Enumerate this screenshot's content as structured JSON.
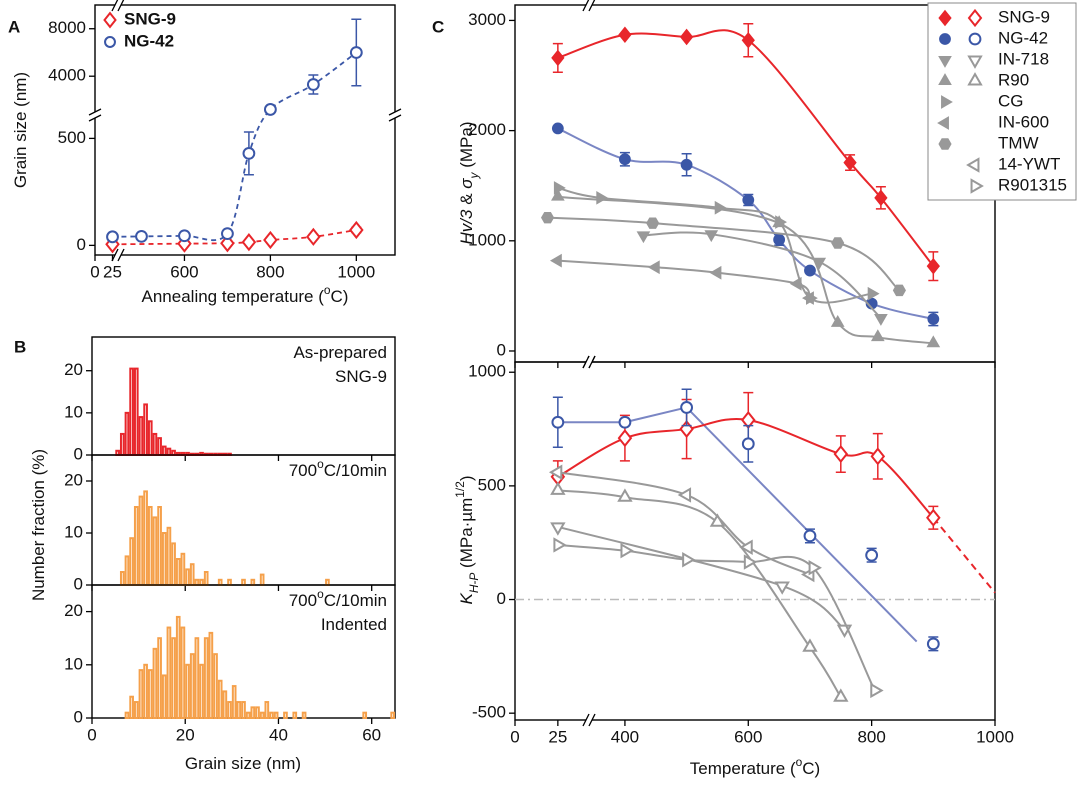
{
  "chart_data": [
    {
      "type": "line",
      "panel_label": "A",
      "x_segments": [
        [
          0,
          30
        ],
        [
          450,
          1090
        ]
      ],
      "y_segments": [
        [
          -45,
          600
        ],
        [
          900,
          10000
        ]
      ],
      "xticks": [
        0,
        25,
        600,
        800,
        1000
      ],
      "yticks": [
        0,
        500,
        4000,
        8000
      ],
      "xlabel": [
        {
          "text": "Annealing temperature ("
        },
        {
          "text": "o",
          "sup": true
        },
        {
          "text": "C)"
        }
      ],
      "ylabel": [
        {
          "text": "Grain size (nm)"
        }
      ],
      "legend": "upper left",
      "series": [
        {
          "name": "SNG-9",
          "color": "#e8262b",
          "marker": "diamond",
          "filled": false,
          "line": "dash",
          "x": [
            25,
            600,
            700,
            750,
            800,
            900,
            1000
          ],
          "values": [
            5,
            8,
            10,
            15,
            25,
            40,
            72
          ],
          "errors": [
            null,
            null,
            null,
            null,
            8,
            10,
            12
          ]
        },
        {
          "name": "NG-42",
          "color": "#3b57a7",
          "marker": "circle",
          "filled": false,
          "line": "dash",
          "x": [
            25,
            500,
            600,
            700,
            750,
            800,
            900,
            1000
          ],
          "values": [
            40,
            42,
            45,
            55,
            430,
            1200,
            3300,
            6000
          ],
          "errors": [
            null,
            null,
            null,
            null,
            100,
            null,
            800,
            2800
          ]
        }
      ]
    },
    {
      "type": "histogram",
      "panel_label": "B",
      "color": "#e8262b",
      "xlim": [
        0,
        65
      ],
      "ylim": [
        0,
        28
      ],
      "xticks": [
        0,
        20,
        40,
        60
      ],
      "yticks": [
        0,
        10,
        20
      ],
      "bins": [
        5,
        6,
        7,
        8,
        9,
        10,
        11,
        12,
        13,
        14,
        15,
        16,
        17,
        18,
        19,
        20,
        21,
        22,
        23,
        24,
        25,
        26,
        27,
        28,
        29,
        30
      ],
      "counts": [
        1,
        5,
        10,
        20.5,
        20.5,
        9,
        12,
        8,
        5,
        4,
        2,
        1.5,
        1,
        0.5,
        0.5,
        0.5,
        0.3,
        0.3,
        0.5,
        0.3,
        0.3,
        0.3,
        0.3,
        0.3,
        0.3
      ],
      "annotation": [
        [
          {
            "text": "As-prepared"
          }
        ],
        [
          {
            "text": "SNG-9"
          }
        ]
      ]
    },
    {
      "type": "histogram",
      "color": "#f5a04a",
      "xlim": [
        0,
        65
      ],
      "ylim": [
        0,
        25
      ],
      "xticks": [
        0,
        20,
        40,
        60
      ],
      "yticks": [
        0,
        10,
        20
      ],
      "ylabel": [
        {
          "text": "Number fraction (%)"
        }
      ],
      "bins": [
        5,
        6,
        7,
        8,
        9,
        10,
        11,
        12,
        13,
        14,
        15,
        16,
        17,
        18,
        19,
        20,
        21,
        22,
        23,
        24,
        25,
        26,
        27,
        28,
        29,
        30,
        31,
        32,
        33,
        34,
        35,
        36,
        37,
        38,
        39,
        40,
        41,
        42,
        43,
        44,
        45,
        46,
        47,
        48,
        49,
        50,
        51,
        52
      ],
      "counts": [
        0,
        2.5,
        5.5,
        9,
        15,
        17,
        18,
        15,
        13,
        15,
        10,
        11,
        8,
        5,
        6,
        3,
        4,
        1,
        1,
        2.5,
        0,
        0,
        1,
        0,
        1,
        0,
        0,
        1,
        0,
        1,
        0,
        2,
        0,
        0,
        0,
        0,
        0,
        0,
        0,
        0,
        0,
        0,
        0,
        0,
        0,
        1,
        0
      ],
      "annotation": [
        [
          {
            "text": "700"
          },
          {
            "text": "o",
            "sup": true
          },
          {
            "text": "C/10min"
          }
        ]
      ]
    },
    {
      "type": "histogram",
      "color": "#f5a04a",
      "xlim": [
        0,
        65
      ],
      "ylim": [
        0,
        25
      ],
      "xticks": [
        0,
        20,
        40,
        60
      ],
      "yticks": [
        0,
        10,
        20
      ],
      "xlabel": [
        {
          "text": "Grain size (nm)"
        }
      ],
      "bins": [
        7,
        8,
        9,
        10,
        11,
        12,
        13,
        14,
        15,
        16,
        17,
        18,
        19,
        20,
        21,
        22,
        23,
        24,
        25,
        26,
        27,
        28,
        29,
        30,
        31,
        32,
        33,
        34,
        35,
        36,
        37,
        38,
        39,
        40,
        41,
        42,
        43,
        44,
        45,
        46,
        47,
        48,
        49,
        50,
        51,
        52,
        53,
        54,
        55,
        56,
        57,
        58,
        59,
        60,
        61,
        62,
        63,
        64,
        65
      ],
      "counts": [
        1,
        4,
        3,
        9,
        10,
        9,
        13,
        15,
        8,
        17,
        15,
        19,
        17,
        10,
        12,
        15,
        10,
        15,
        16,
        12,
        7,
        5,
        3,
        6,
        3,
        3,
        1,
        2,
        2,
        1,
        3,
        1,
        1,
        0,
        1,
        0,
        1,
        0,
        1,
        0,
        0,
        0,
        0,
        0,
        0,
        0,
        0,
        0,
        0,
        0,
        0,
        1,
        0,
        0,
        0,
        0,
        0,
        1
      ],
      "annotation": [
        [
          {
            "text": "700"
          },
          {
            "text": "o",
            "sup": true
          },
          {
            "text": "C/10min"
          }
        ],
        [
          {
            "text": "Indented"
          }
        ]
      ]
    },
    {
      "type": "scatter",
      "panel_label": "C",
      "x_segments": [
        [
          0,
          42
        ],
        [
          345,
          1000
        ]
      ],
      "ylim": [
        -100,
        3140
      ],
      "xticks": [
        0,
        25,
        400,
        600,
        800,
        1000
      ],
      "yticks": [
        0,
        1000,
        2000,
        3000
      ],
      "legend": "upper right",
      "ylabel": [
        {
          "text": "Hv/3",
          "italic": true
        },
        {
          "text": " & "
        },
        {
          "text": "σ",
          "italic": true
        },
        {
          "text": "y",
          "sub": true,
          "italic": true
        },
        {
          "text": " (MPa)"
        }
      ],
      "series": [
        {
          "name": "SNG-9",
          "color": "#e8262b",
          "marker": "diamond",
          "filled": true,
          "line": "solid",
          "x": [
            25,
            400,
            500,
            600,
            765,
            815,
            900
          ],
          "values": [
            2660,
            2870,
            2850,
            2820,
            1710,
            1390,
            770
          ],
          "errors": [
            130,
            null,
            null,
            150,
            70,
            100,
            130
          ]
        },
        {
          "name": "NG-42",
          "color": "#3b57a7",
          "line_color": "#7a86c4",
          "marker": "circle",
          "filled": true,
          "line": "solid",
          "x": [
            25,
            400,
            500,
            600,
            650,
            700,
            800,
            900
          ],
          "values": [
            2020,
            1740,
            1690,
            1370,
            1010,
            730,
            430,
            290
          ],
          "errors": [
            null,
            60,
            100,
            50,
            50,
            null,
            null,
            60
          ]
        },
        {
          "name": "IN-718",
          "color": "#999999",
          "marker": "tri-down",
          "filled": true,
          "line": "solid",
          "x": [
            430,
            540,
            715,
            815
          ],
          "values": [
            1050,
            1060,
            810,
            300
          ]
        },
        {
          "name": "R90",
          "color": "#999999",
          "marker": "tri-up",
          "filled": true,
          "line": "solid",
          "x": [
            25,
            650,
            745,
            810,
            900
          ],
          "values": [
            1400,
            1160,
            255,
            125,
            70
          ]
        },
        {
          "name": "CG",
          "color": "#999999",
          "marker": "tri-right",
          "filled": true,
          "line": "solid",
          "x": [
            25,
            360,
            552,
            650,
            700,
            800
          ],
          "values": [
            1480,
            1390,
            1300,
            1170,
            480,
            520
          ]
        },
        {
          "name": "IN-600",
          "color": "#999999",
          "marker": "tri-left",
          "filled": true,
          "line": "solid",
          "x": [
            25,
            450,
            550,
            680,
            700
          ],
          "values": [
            820,
            760,
            710,
            610,
            480
          ]
        },
        {
          "name": "TMW",
          "color": "#999999",
          "marker": "hexagon",
          "filled": true,
          "line": "solid",
          "x": [
            19,
            445,
            745,
            845
          ],
          "values": [
            1210,
            1160,
            980,
            550
          ]
        }
      ]
    },
    {
      "type": "scatter",
      "x_segments": [
        [
          0,
          42
        ],
        [
          345,
          1000
        ]
      ],
      "ylim": [
        -530,
        1045
      ],
      "xticks": [
        0,
        25,
        400,
        600,
        800,
        1000
      ],
      "yticks": [
        -500,
        0,
        500,
        1000
      ],
      "hline": 0,
      "xlabel": [
        {
          "text": "Temperature ("
        },
        {
          "text": "o",
          "sup": true
        },
        {
          "text": "C)"
        }
      ],
      "ylabel": [
        {
          "text": "K",
          "italic": true
        },
        {
          "text": "H-P",
          "sub": true,
          "italic": true
        },
        {
          "text": " (MPa·µm"
        },
        {
          "text": "1/2",
          "sup": true
        },
        {
          "text": ")"
        }
      ],
      "series": [
        {
          "name": "SNG-9",
          "color": "#e8262b",
          "marker": "diamond",
          "filled": false,
          "line": "solid",
          "x": [
            25,
            400,
            500,
            600,
            750,
            810,
            900
          ],
          "values": [
            540,
            710,
            750,
            790,
            640,
            630,
            360
          ],
          "errors": [
            70,
            100,
            130,
            120,
            80,
            100,
            50
          ]
        },
        {
          "name": "NG-42",
          "color": "#3b57a7",
          "marker": "circle",
          "filled": false,
          "x": [
            25,
            400,
            500,
            600,
            700,
            800,
            900
          ],
          "values": [
            780,
            780,
            845,
            685,
            280,
            195,
            -195
          ],
          "errors": [
            110,
            null,
            80,
            80,
            30,
            30,
            30
          ]
        },
        {
          "name": "IN-718",
          "color": "#999999",
          "marker": "tri-down",
          "filled": false,
          "line": "solid",
          "x": [
            25,
            655,
            756
          ],
          "values": [
            320,
            60,
            -130
          ]
        },
        {
          "name": "R90",
          "color": "#999999",
          "marker": "tri-up",
          "filled": false,
          "line": "solid",
          "x": [
            25,
            400,
            550,
            700,
            750
          ],
          "values": [
            480,
            450,
            340,
            -210,
            -430
          ]
        },
        {
          "name": "14-YWT",
          "color": "#999999",
          "marker": "tri-left",
          "filled": false,
          "line": "solid",
          "x": [
            25,
            500,
            600,
            700
          ],
          "values": [
            560,
            460,
            230,
            110
          ]
        },
        {
          "name": "R901315",
          "color": "#999999",
          "marker": "tri-right",
          "filled": false,
          "line": "solid",
          "x": [
            25,
            400,
            500,
            600,
            705,
            805
          ],
          "values": [
            240,
            215,
            175,
            165,
            140,
            -400
          ]
        }
      ],
      "curves": [
        {
          "color": "#7a86c4",
          "x": [
            25,
            400,
            500,
            873
          ],
          "values": [
            780,
            780,
            845,
            -185
          ]
        },
        {
          "color": "#e8262b",
          "dash": true,
          "x": [
            900,
            1000
          ],
          "values": [
            360,
            30
          ]
        }
      ]
    }
  ]
}
